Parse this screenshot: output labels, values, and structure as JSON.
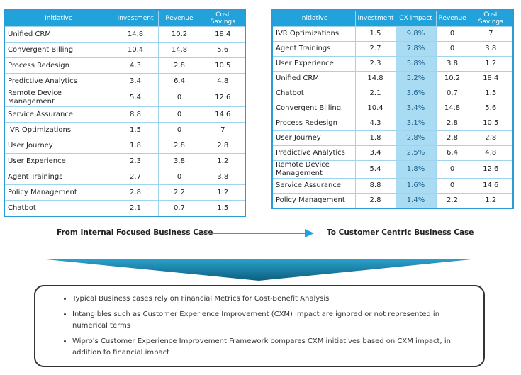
{
  "left_table": {
    "headers": [
      "Initiative",
      "Investment",
      "Revenue",
      "Cost Savings"
    ],
    "rows": [
      [
        "Unified CRM",
        "14.8",
        "10.2",
        "18.4"
      ],
      [
        "Convergent Billing",
        "10.4",
        "14.8",
        "5.6"
      ],
      [
        "Process Redesign",
        "4.3",
        "2.8",
        "10.5"
      ],
      [
        "Predictive Analytics",
        "3.4",
        "6.4",
        "4.8"
      ],
      [
        "Remote Device Management",
        "5.4",
        "0",
        "12.6"
      ],
      [
        "Service Assurance",
        "8.8",
        "0",
        "14.6"
      ],
      [
        "IVR Optimizations",
        "1.5",
        "0",
        "7"
      ],
      [
        "User Journey",
        "1.8",
        "2.8",
        "2.8"
      ],
      [
        "User Experience",
        "2.3",
        "3.8",
        "1.2"
      ],
      [
        "Agent Trainings",
        "2.7",
        "0",
        "3.8"
      ],
      [
        "Policy Management",
        "2.8",
        "2.2",
        "1.2"
      ],
      [
        "Chatbot",
        "2.1",
        "0.7",
        "1.5"
      ]
    ]
  },
  "right_table": {
    "headers": [
      "Initiative",
      "Investment",
      "CX Impact",
      "Revenue",
      "Cost Savings"
    ],
    "rows": [
      [
        "IVR Optimizations",
        "1.5",
        "9.8%",
        "0",
        "7"
      ],
      [
        "Agent Trainings",
        "2.7",
        "7.8%",
        "0",
        "3.8"
      ],
      [
        "User Experience",
        "2.3",
        "5.8%",
        "3.8",
        "1.2"
      ],
      [
        "Unified CRM",
        "14.8",
        "5.2%",
        "10.2",
        "18.4"
      ],
      [
        "Chatbot",
        "2.1",
        "3.6%",
        "0.7",
        "1.5"
      ],
      [
        "Convergent Billing",
        "10.4",
        "3.4%",
        "14.8",
        "5.6"
      ],
      [
        "Process Redesign",
        "4.3",
        "3.1%",
        "2.8",
        "10.5"
      ],
      [
        "User Journey",
        "1.8",
        "2.8%",
        "2.8",
        "2.8"
      ],
      [
        "Predictive Analytics",
        "3.4",
        "2.5%",
        "6.4",
        "4.8"
      ],
      [
        "Remote Device Management",
        "5.4",
        "1.8%",
        "0",
        "12.6"
      ],
      [
        "Service Assurance",
        "8.8",
        "1.6%",
        "0",
        "14.6"
      ],
      [
        "Policy Management",
        "2.8",
        "1.4%",
        "2.2",
        "1.2"
      ]
    ]
  },
  "flow": {
    "from": "From Internal Focused Business Case",
    "to": "To Customer Centric Business Case"
  },
  "bullets": [
    "Typical Business cases rely on Financial Metrics for Cost-Benefit Analysis",
    "Intangibles such as Customer Experience Improvement (CXM) impact are ignored or not represented in numerical terms",
    "Wipro's Customer Experience Improvement Framework compares CXM initiatives based on CXM impact, in addition to financial impact"
  ]
}
